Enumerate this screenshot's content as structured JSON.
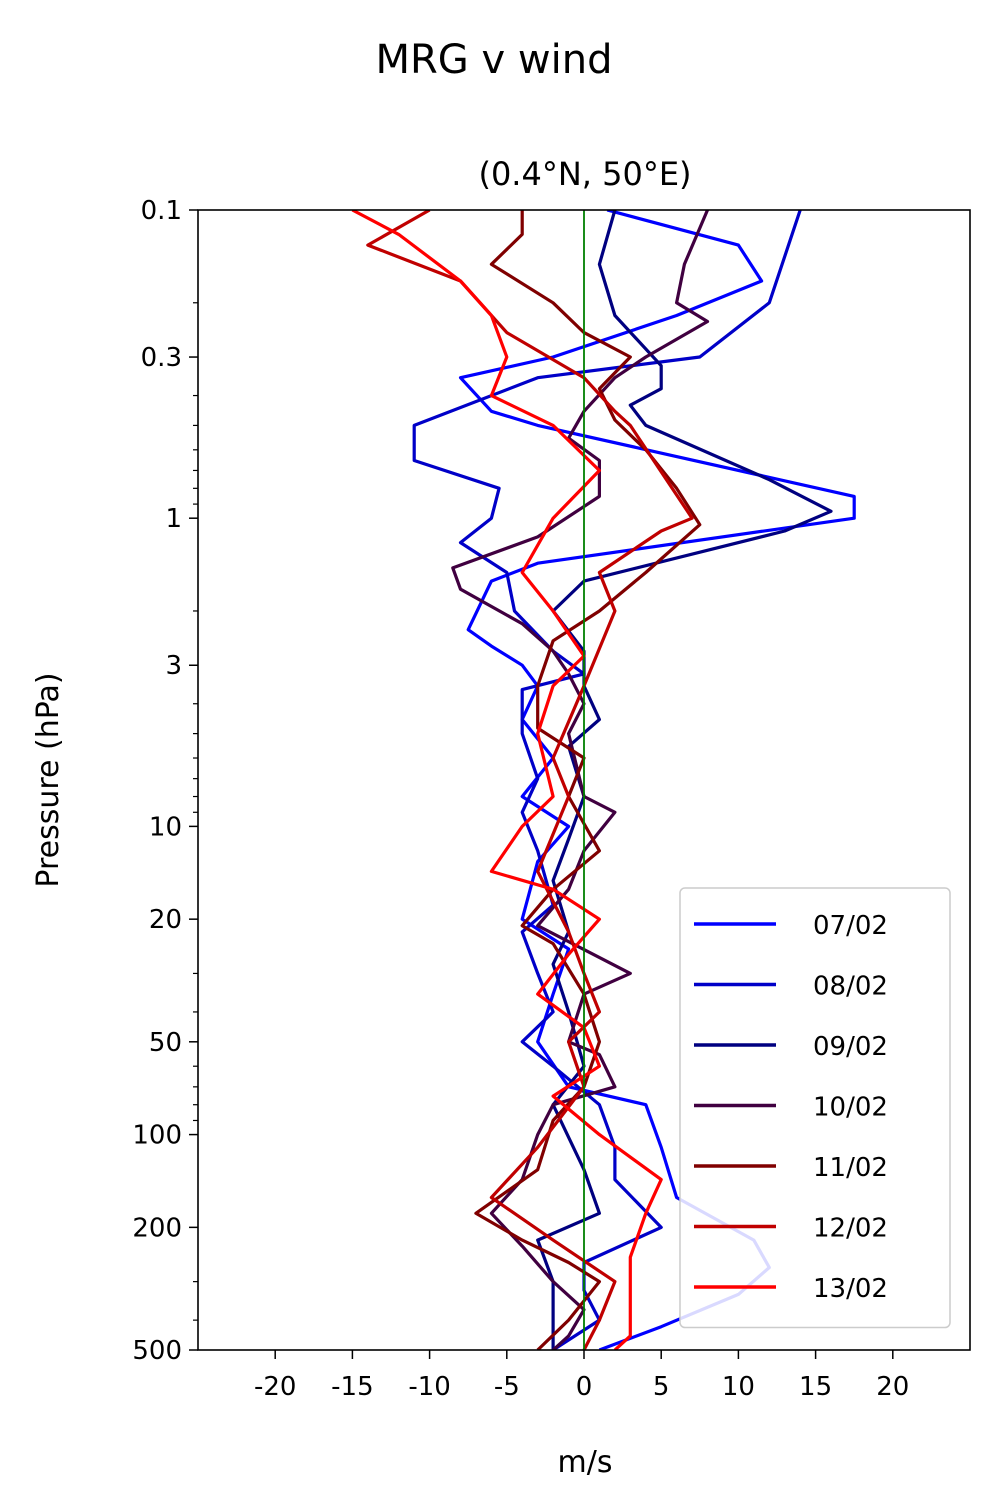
{
  "chart_data": {
    "type": "line",
    "title": "MRG v wind",
    "subtitle": "(0.4°N, 50°E)",
    "xlabel": "m/s",
    "ylabel": "Pressure (hPa)",
    "xlim": [
      -25,
      25
    ],
    "ylim": [
      500,
      0.1
    ],
    "y_scale": "log",
    "x_ticks": [
      -20,
      -15,
      -10,
      -5,
      0,
      5,
      10,
      15,
      20
    ],
    "x_tick_labels": [
      "-20",
      "-15",
      "-10",
      "-5",
      "0",
      "5",
      "10",
      "15",
      "20"
    ],
    "y_ticks": [
      0.1,
      0.3,
      1,
      3,
      10,
      20,
      50,
      100,
      200,
      500
    ],
    "y_tick_labels": [
      "0.1",
      "0.3",
      "1",
      "3",
      "10",
      "20",
      "50",
      "100",
      "200",
      "500"
    ],
    "zero_line_color": "#008000",
    "legend_position": "lower-right",
    "series": [
      {
        "name": "07/02",
        "color": "#0000ff",
        "points": [
          [
            1.5,
            0.1
          ],
          [
            10,
            0.13
          ],
          [
            11.5,
            0.17
          ],
          [
            6,
            0.22
          ],
          [
            -2,
            0.3
          ],
          [
            -8,
            0.35
          ],
          [
            -6,
            0.45
          ],
          [
            -3,
            0.5
          ],
          [
            17.5,
            0.85
          ],
          [
            17.5,
            1
          ],
          [
            -3,
            1.4
          ],
          [
            -6,
            1.6
          ],
          [
            -7.5,
            2.3
          ],
          [
            -6,
            2.6
          ],
          [
            -4,
            3
          ],
          [
            -3,
            3.5
          ],
          [
            -4,
            4.5
          ],
          [
            -2,
            6
          ],
          [
            -4,
            8
          ],
          [
            -1,
            10
          ],
          [
            -3,
            13
          ],
          [
            -4,
            20
          ],
          [
            -1,
            25
          ],
          [
            -2,
            35
          ],
          [
            -3,
            50
          ],
          [
            -1,
            70
          ],
          [
            4,
            80
          ],
          [
            5,
            110
          ],
          [
            6,
            160
          ],
          [
            11,
            220
          ],
          [
            12,
            270
          ],
          [
            10,
            330
          ],
          [
            5,
            420
          ],
          [
            1,
            500
          ]
        ]
      },
      {
        "name": "08/02",
        "color": "#0000c8",
        "points": [
          [
            14,
            0.1
          ],
          [
            12,
            0.2
          ],
          [
            7.5,
            0.3
          ],
          [
            -3,
            0.35
          ],
          [
            -11,
            0.5
          ],
          [
            -11,
            0.65
          ],
          [
            -5.5,
            0.8
          ],
          [
            -6,
            1
          ],
          [
            -8,
            1.2
          ],
          [
            -5,
            1.5
          ],
          [
            -4.5,
            2
          ],
          [
            -2,
            2.7
          ],
          [
            0,
            3.2
          ],
          [
            -4,
            3.6
          ],
          [
            -4,
            5
          ],
          [
            -3,
            7
          ],
          [
            -4,
            9
          ],
          [
            -3,
            12
          ],
          [
            -2,
            18
          ],
          [
            -4,
            22
          ],
          [
            -3,
            30
          ],
          [
            -2,
            40
          ],
          [
            -4,
            50
          ],
          [
            -2,
            60
          ],
          [
            1,
            80
          ],
          [
            2,
            110
          ],
          [
            2,
            140
          ],
          [
            5,
            200
          ],
          [
            0,
            260
          ],
          [
            0,
            320
          ],
          [
            1,
            400
          ],
          [
            -2,
            500
          ]
        ]
      },
      {
        "name": "09/02",
        "color": "#000080",
        "points": [
          [
            2,
            0.1
          ],
          [
            1,
            0.15
          ],
          [
            2,
            0.22
          ],
          [
            5,
            0.32
          ],
          [
            5,
            0.38
          ],
          [
            3,
            0.43
          ],
          [
            4,
            0.5
          ],
          [
            12,
            0.75
          ],
          [
            16,
            0.95
          ],
          [
            13,
            1.1
          ],
          [
            0,
            1.6
          ],
          [
            -2,
            2
          ],
          [
            0,
            2.7
          ],
          [
            0,
            3.5
          ],
          [
            1,
            4.5
          ],
          [
            -1,
            5.5
          ],
          [
            0,
            8
          ],
          [
            -1,
            11
          ],
          [
            -2,
            15
          ],
          [
            -1,
            22
          ],
          [
            -2,
            28
          ],
          [
            -1,
            40
          ],
          [
            0,
            60
          ],
          [
            -2,
            80
          ],
          [
            0,
            130
          ],
          [
            1,
            180
          ],
          [
            -3,
            220
          ],
          [
            -2,
            300
          ],
          [
            -2,
            400
          ],
          [
            -2,
            500
          ]
        ]
      },
      {
        "name": "10/02",
        "color": "#400040",
        "points": [
          [
            8,
            0.1
          ],
          [
            6.5,
            0.15
          ],
          [
            6,
            0.2
          ],
          [
            8,
            0.23
          ],
          [
            4,
            0.3
          ],
          [
            2,
            0.35
          ],
          [
            0,
            0.45
          ],
          [
            -1,
            0.55
          ],
          [
            1,
            0.65
          ],
          [
            1,
            0.85
          ],
          [
            -3,
            1.15
          ],
          [
            -8.5,
            1.45
          ],
          [
            -8,
            1.7
          ],
          [
            -4,
            2.2
          ],
          [
            -2,
            2.7
          ],
          [
            -1,
            3.2
          ],
          [
            0,
            4
          ],
          [
            -1,
            5
          ],
          [
            0,
            8
          ],
          [
            2,
            9
          ],
          [
            0,
            12
          ],
          [
            -1,
            16
          ],
          [
            -3,
            21
          ],
          [
            3,
            30
          ],
          [
            0,
            35
          ],
          [
            -1,
            50
          ],
          [
            1,
            55
          ],
          [
            2,
            70
          ],
          [
            -2,
            80
          ],
          [
            -3,
            100
          ],
          [
            -4,
            140
          ],
          [
            -6,
            180
          ],
          [
            -4,
            230
          ],
          [
            -2,
            300
          ],
          [
            0,
            370
          ],
          [
            -1,
            450
          ],
          [
            -2,
            500
          ]
        ]
      },
      {
        "name": "11/02",
        "color": "#800000",
        "points": [
          [
            -4,
            0.1
          ],
          [
            -4,
            0.12
          ],
          [
            -6,
            0.15
          ],
          [
            -2,
            0.2
          ],
          [
            0,
            0.25
          ],
          [
            3,
            0.3
          ],
          [
            1,
            0.38
          ],
          [
            2,
            0.48
          ],
          [
            4,
            0.6
          ],
          [
            6,
            0.8
          ],
          [
            7.5,
            1.05
          ],
          [
            4,
            1.5
          ],
          [
            1,
            2
          ],
          [
            -2,
            2.5
          ],
          [
            -3,
            3.5
          ],
          [
            -3,
            4.8
          ],
          [
            0,
            6
          ],
          [
            -1,
            8
          ],
          [
            1,
            12
          ],
          [
            -2,
            16
          ],
          [
            -4,
            21
          ],
          [
            -2,
            24
          ],
          [
            0,
            35
          ],
          [
            1,
            50
          ],
          [
            0,
            70
          ],
          [
            -2,
            90
          ],
          [
            -3,
            130
          ],
          [
            -7,
            180
          ],
          [
            -4,
            220
          ],
          [
            -1,
            260
          ],
          [
            1,
            300
          ],
          [
            -1,
            400
          ],
          [
            -3,
            500
          ]
        ]
      },
      {
        "name": "12/02",
        "color": "#c00000",
        "points": [
          [
            -10,
            0.1
          ],
          [
            -14,
            0.13
          ],
          [
            -8,
            0.17
          ],
          [
            -5,
            0.25
          ],
          [
            0,
            0.35
          ],
          [
            2,
            0.45
          ],
          [
            3,
            0.5
          ],
          [
            7,
            1
          ],
          [
            5,
            1.1
          ],
          [
            1,
            1.5
          ],
          [
            2,
            2
          ],
          [
            0,
            3.5
          ],
          [
            -2,
            6
          ],
          [
            -1,
            8
          ],
          [
            -3,
            14
          ],
          [
            -1,
            22
          ],
          [
            0,
            30
          ],
          [
            1,
            40
          ],
          [
            -1,
            50
          ],
          [
            0,
            70
          ],
          [
            -3,
            110
          ],
          [
            -6,
            160
          ],
          [
            -2,
            220
          ],
          [
            2,
            300
          ],
          [
            1,
            400
          ],
          [
            0,
            500
          ]
        ]
      },
      {
        "name": "13/02",
        "color": "#ff0000",
        "points": [
          [
            -15,
            0.1
          ],
          [
            -12,
            0.12
          ],
          [
            -8,
            0.17
          ],
          [
            -6,
            0.22
          ],
          [
            -5,
            0.3
          ],
          [
            -6,
            0.4
          ],
          [
            -2,
            0.5
          ],
          [
            1,
            0.7
          ],
          [
            -2,
            1
          ],
          [
            -4,
            1.5
          ],
          [
            -2,
            2
          ],
          [
            0,
            2.8
          ],
          [
            -2,
            3.5
          ],
          [
            -3,
            5
          ],
          [
            -2,
            8
          ],
          [
            -4,
            10
          ],
          [
            -6,
            14
          ],
          [
            -2,
            16
          ],
          [
            1,
            20
          ],
          [
            -1,
            26
          ],
          [
            -3,
            35
          ],
          [
            0,
            45
          ],
          [
            1,
            60
          ],
          [
            -2,
            75
          ],
          [
            1,
            100
          ],
          [
            5,
            140
          ],
          [
            4,
            180
          ],
          [
            3,
            250
          ],
          [
            3,
            350
          ],
          [
            3,
            450
          ],
          [
            2,
            500
          ]
        ]
      }
    ]
  }
}
